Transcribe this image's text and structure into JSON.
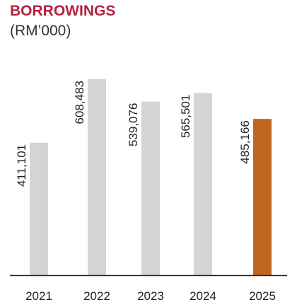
{
  "chart_data": {
    "type": "bar",
    "title": "BORROWINGS",
    "subtitle": "(RM’000)",
    "categories": [
      "2021",
      "2022",
      "2023",
      "2024",
      "2025"
    ],
    "values": [
      411101,
      608483,
      539076,
      565501,
      485166
    ],
    "value_labels": [
      "411,101",
      "608,483",
      "539,076",
      "565,501",
      "485,166"
    ],
    "xlabel": "",
    "ylabel": "",
    "ylim": [
      0,
      600000
    ],
    "grid": false,
    "legend": "none",
    "colors": {
      "title": "#b5213e",
      "bar_default": "#d4d4d4",
      "bar_highlight": "#c0661e",
      "axis": "#222222",
      "text": "#222222"
    },
    "highlight_index": 4
  }
}
